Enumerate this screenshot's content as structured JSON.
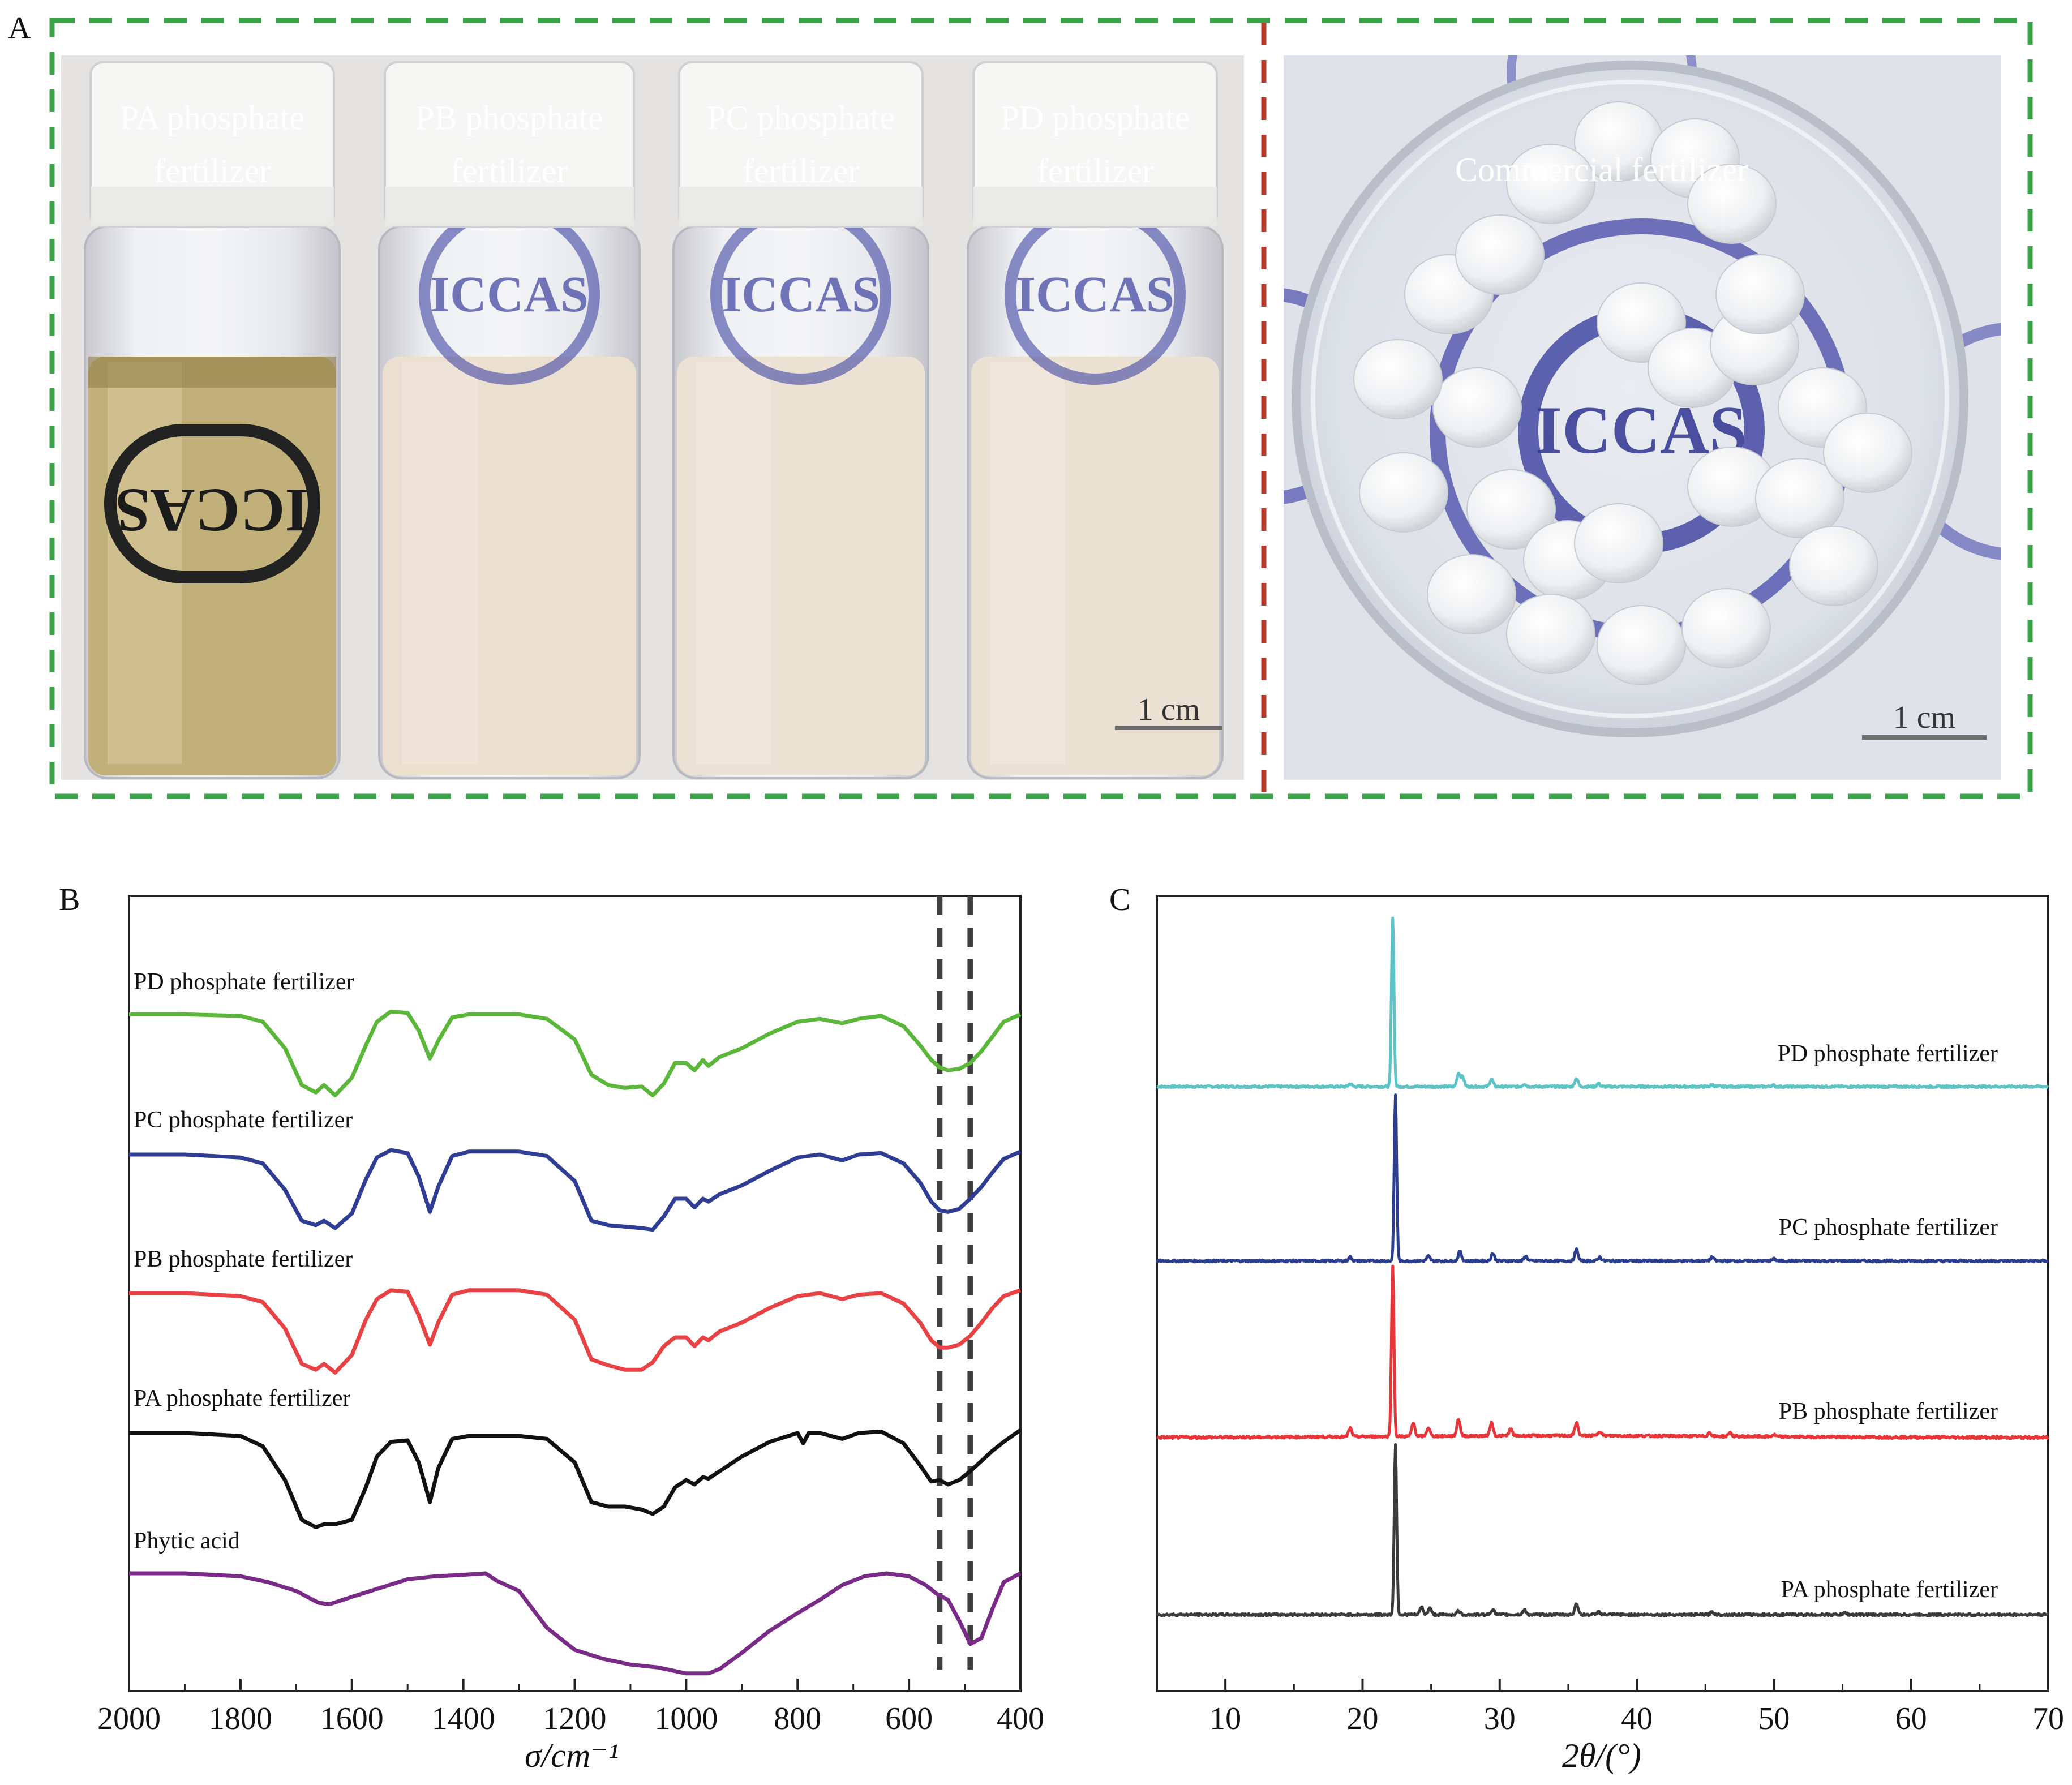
{
  "panel_a": {
    "letter": "A",
    "vials": [
      {
        "line1": "PA phosphate",
        "line2": "fertilizer",
        "liquid": "#c2b07a",
        "liquid_light": "#d7c99b"
      },
      {
        "line1": "PB phosphate",
        "line2": "fertilizer",
        "liquid": "#ebdfd0",
        "liquid_light": "#f1e8dc"
      },
      {
        "line1": "PC phosphate",
        "line2": "fertilizer",
        "liquid": "#ece2d3",
        "liquid_light": "#f3ebe0"
      },
      {
        "line1": "PD phosphate",
        "line2": "fertilizer",
        "liquid": "#ebe1d2",
        "liquid_light": "#f2e9de"
      }
    ],
    "vial_scale": "1 cm",
    "dish_label": "Commercial fertilizer",
    "dish_scale": "1 cm",
    "colors": {
      "outer_border": "#3aa34a",
      "divider": "#b23a2a",
      "scale_bar": "#6b6b6b"
    }
  },
  "chart_data": [
    {
      "type": "line",
      "panel": "B",
      "title": "",
      "xlabel": "σ/cm⁻¹",
      "ylabel": "",
      "xlim": [
        2000,
        400
      ],
      "x_reversed": true,
      "ticks": [
        2000,
        1800,
        1600,
        1400,
        1200,
        1000,
        800,
        600,
        400
      ],
      "reference_lines": [
        545,
        490
      ],
      "reference_line_color": "#404040",
      "series": [
        {
          "name": "PD phosphate fertilizer",
          "color": "#5ab73a",
          "offset": 4,
          "x": [
            2000,
            1900,
            1800,
            1760,
            1720,
            1690,
            1665,
            1650,
            1630,
            1600,
            1575,
            1555,
            1530,
            1500,
            1480,
            1460,
            1445,
            1420,
            1390,
            1300,
            1250,
            1200,
            1170,
            1140,
            1110,
            1080,
            1060,
            1040,
            1020,
            1000,
            985,
            970,
            960,
            940,
            900,
            850,
            800,
            760,
            720,
            690,
            650,
            610,
            580,
            560,
            545,
            530,
            510,
            490,
            470,
            450,
            430,
            400
          ],
          "y": [
            0.93,
            0.93,
            0.92,
            0.88,
            0.7,
            0.45,
            0.4,
            0.45,
            0.38,
            0.5,
            0.72,
            0.88,
            0.95,
            0.94,
            0.82,
            0.63,
            0.75,
            0.91,
            0.93,
            0.93,
            0.9,
            0.76,
            0.52,
            0.45,
            0.43,
            0.44,
            0.38,
            0.46,
            0.6,
            0.6,
            0.55,
            0.62,
            0.58,
            0.64,
            0.7,
            0.8,
            0.88,
            0.9,
            0.87,
            0.9,
            0.92,
            0.85,
            0.72,
            0.62,
            0.57,
            0.55,
            0.56,
            0.6,
            0.68,
            0.78,
            0.88,
            0.93
          ]
        },
        {
          "name": "PC phosphate fertilizer",
          "color": "#2f3d94",
          "offset": 3,
          "x": [
            2000,
            1900,
            1800,
            1760,
            1720,
            1690,
            1665,
            1650,
            1630,
            1600,
            1575,
            1555,
            1530,
            1500,
            1480,
            1460,
            1445,
            1420,
            1390,
            1300,
            1250,
            1200,
            1170,
            1140,
            1110,
            1080,
            1060,
            1040,
            1020,
            1000,
            985,
            970,
            960,
            940,
            900,
            850,
            800,
            760,
            720,
            690,
            650,
            610,
            580,
            560,
            545,
            530,
            510,
            490,
            470,
            450,
            430,
            400
          ],
          "y": [
            0.92,
            0.92,
            0.9,
            0.86,
            0.68,
            0.47,
            0.44,
            0.47,
            0.42,
            0.52,
            0.75,
            0.9,
            0.95,
            0.93,
            0.77,
            0.53,
            0.7,
            0.91,
            0.94,
            0.94,
            0.91,
            0.74,
            0.47,
            0.44,
            0.43,
            0.42,
            0.41,
            0.5,
            0.62,
            0.62,
            0.56,
            0.62,
            0.6,
            0.65,
            0.71,
            0.81,
            0.9,
            0.92,
            0.88,
            0.92,
            0.93,
            0.86,
            0.73,
            0.6,
            0.54,
            0.53,
            0.55,
            0.62,
            0.7,
            0.8,
            0.89,
            0.94
          ]
        },
        {
          "name": "PB phosphate fertilizer",
          "color": "#e84245",
          "offset": 2,
          "x": [
            2000,
            1900,
            1800,
            1760,
            1720,
            1690,
            1665,
            1650,
            1630,
            1600,
            1575,
            1555,
            1530,
            1500,
            1480,
            1460,
            1445,
            1420,
            1390,
            1300,
            1250,
            1200,
            1170,
            1140,
            1110,
            1080,
            1060,
            1040,
            1020,
            1000,
            985,
            970,
            960,
            940,
            900,
            850,
            800,
            760,
            720,
            690,
            650,
            610,
            580,
            560,
            545,
            530,
            510,
            490,
            470,
            450,
            430,
            400
          ],
          "y": [
            0.92,
            0.92,
            0.9,
            0.86,
            0.68,
            0.44,
            0.4,
            0.44,
            0.38,
            0.5,
            0.74,
            0.88,
            0.94,
            0.93,
            0.77,
            0.57,
            0.72,
            0.91,
            0.94,
            0.94,
            0.91,
            0.74,
            0.47,
            0.43,
            0.4,
            0.4,
            0.45,
            0.56,
            0.62,
            0.62,
            0.56,
            0.62,
            0.6,
            0.66,
            0.72,
            0.82,
            0.9,
            0.92,
            0.88,
            0.91,
            0.92,
            0.85,
            0.72,
            0.6,
            0.55,
            0.55,
            0.57,
            0.63,
            0.72,
            0.82,
            0.9,
            0.94
          ]
        },
        {
          "name": "PA phosphate fertilizer",
          "color": "#111111",
          "offset": 1,
          "x": [
            2000,
            1900,
            1800,
            1760,
            1720,
            1690,
            1665,
            1650,
            1630,
            1600,
            1575,
            1555,
            1530,
            1500,
            1480,
            1460,
            1445,
            1420,
            1390,
            1300,
            1250,
            1200,
            1170,
            1140,
            1110,
            1080,
            1060,
            1040,
            1020,
            1000,
            985,
            970,
            960,
            940,
            900,
            850,
            800,
            790,
            780,
            760,
            720,
            690,
            650,
            610,
            580,
            560,
            545,
            530,
            510,
            490,
            470,
            450,
            430,
            400
          ],
          "y": [
            0.92,
            0.92,
            0.9,
            0.83,
            0.6,
            0.33,
            0.28,
            0.3,
            0.3,
            0.33,
            0.55,
            0.76,
            0.86,
            0.87,
            0.72,
            0.45,
            0.68,
            0.88,
            0.9,
            0.9,
            0.88,
            0.72,
            0.45,
            0.42,
            0.42,
            0.4,
            0.37,
            0.42,
            0.55,
            0.6,
            0.57,
            0.62,
            0.61,
            0.66,
            0.76,
            0.86,
            0.92,
            0.85,
            0.92,
            0.92,
            0.88,
            0.92,
            0.93,
            0.85,
            0.7,
            0.59,
            0.6,
            0.57,
            0.6,
            0.66,
            0.73,
            0.8,
            0.86,
            0.94
          ]
        },
        {
          "name": "Phytic acid",
          "color": "#7a2a87",
          "offset": 0,
          "x": [
            2000,
            1900,
            1800,
            1750,
            1700,
            1660,
            1640,
            1600,
            1550,
            1500,
            1450,
            1400,
            1360,
            1340,
            1300,
            1250,
            1200,
            1150,
            1100,
            1050,
            1000,
            960,
            940,
            900,
            850,
            800,
            760,
            720,
            680,
            640,
            600,
            570,
            550,
            530,
            510,
            490,
            470,
            450,
            430,
            400
          ],
          "y": [
            0.92,
            0.92,
            0.9,
            0.86,
            0.8,
            0.72,
            0.71,
            0.76,
            0.82,
            0.88,
            0.9,
            0.91,
            0.92,
            0.87,
            0.8,
            0.55,
            0.4,
            0.34,
            0.3,
            0.28,
            0.24,
            0.24,
            0.27,
            0.38,
            0.53,
            0.65,
            0.74,
            0.84,
            0.9,
            0.92,
            0.9,
            0.84,
            0.78,
            0.74,
            0.6,
            0.44,
            0.48,
            0.68,
            0.86,
            0.92
          ]
        }
      ]
    },
    {
      "type": "line",
      "panel": "C",
      "title": "",
      "xlabel": "2θ/(°)",
      "ylabel": "",
      "xlim": [
        5,
        70
      ],
      "ticks": [
        10,
        20,
        30,
        40,
        50,
        60,
        70
      ],
      "series": [
        {
          "name": "PD phosphate fertilizer",
          "color": "#5ec3c6",
          "offset": 3,
          "peaks": [
            [
              19.1,
              0.15
            ],
            [
              22.2,
              9
            ],
            [
              27,
              0.7
            ],
            [
              27.3,
              0.5
            ],
            [
              29.4,
              0.4
            ],
            [
              31.8,
              0.15
            ],
            [
              35.6,
              0.45
            ],
            [
              37.2,
              0.15
            ],
            [
              45.5,
              0.1
            ],
            [
              49.9,
              0.08
            ]
          ]
        },
        {
          "name": "PC phosphate fertilizer",
          "color": "#2a3d8f",
          "offset": 2,
          "peaks": [
            [
              19.1,
              0.2
            ],
            [
              22.4,
              8.8
            ],
            [
              24.8,
              0.25
            ],
            [
              27.1,
              0.5
            ],
            [
              29.5,
              0.4
            ],
            [
              31.9,
              0.25
            ],
            [
              35.6,
              0.6
            ],
            [
              37.3,
              0.2
            ],
            [
              45.5,
              0.2
            ],
            [
              50,
              0.1
            ]
          ]
        },
        {
          "name": "PB phosphate fertilizer",
          "color": "#e8353a",
          "offset": 1,
          "peaks": [
            [
              19.1,
              0.45
            ],
            [
              22.2,
              9
            ],
            [
              23.7,
              0.7
            ],
            [
              24.8,
              0.45
            ],
            [
              27,
              0.9
            ],
            [
              29.4,
              0.7
            ],
            [
              30.8,
              0.35
            ],
            [
              35.6,
              0.7
            ],
            [
              37.3,
              0.25
            ],
            [
              45.3,
              0.2
            ],
            [
              46.8,
              0.2
            ],
            [
              50,
              0.1
            ]
          ]
        },
        {
          "name": "PA phosphate fertilizer",
          "color": "#3a3a3a",
          "offset": 0,
          "peaks": [
            [
              22.4,
              9
            ],
            [
              24.3,
              0.4
            ],
            [
              24.9,
              0.35
            ],
            [
              27,
              0.2
            ],
            [
              29.5,
              0.3
            ],
            [
              31.8,
              0.25
            ],
            [
              35.6,
              0.6
            ],
            [
              37.2,
              0.15
            ],
            [
              45.5,
              0.15
            ],
            [
              55.2,
              0.1
            ]
          ]
        }
      ]
    }
  ],
  "panel_letters": {
    "b": "B",
    "c": "C"
  }
}
